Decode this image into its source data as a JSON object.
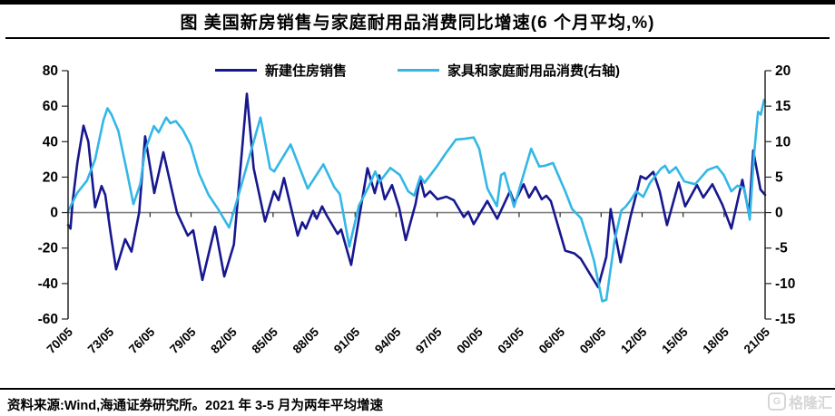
{
  "title": "图  美国新房销售与家庭耐用品消费同比增速(6 个月平均,%)",
  "legend": [
    {
      "label": "新建住房销售",
      "color": "#17178F"
    },
    {
      "label": "家具和家庭耐用品消费(右轴)",
      "color": "#33B7E6"
    }
  ],
  "footer": {
    "source_note": "资料来源:Wind,海通证券研究所。2021 年 3-5 月为两年平均增速",
    "logo_mark": "G",
    "logo_text": "格隆汇"
  },
  "chart_data": {
    "type": "line",
    "title": "美国新房销售与家庭耐用品消费同比增速(6个月平均,%)",
    "grid": false,
    "legend_position": "top",
    "x_range": [
      1970.42,
      2021.42
    ],
    "x_tick_labels": [
      "70/05",
      "73/05",
      "76/05",
      "79/05",
      "82/05",
      "85/05",
      "88/05",
      "91/05",
      "94/05",
      "97/05",
      "00/05",
      "03/05",
      "06/05",
      "09/05",
      "12/05",
      "15/05",
      "18/05",
      "21/05"
    ],
    "left_axis": {
      "min": -60,
      "max": 80,
      "ticks": [
        80,
        60,
        40,
        20,
        0,
        -20,
        -40,
        -60
      ]
    },
    "right_axis": {
      "min": -15,
      "max": 20,
      "ticks": [
        20,
        15,
        10,
        5,
        0,
        -5,
        -10,
        -15
      ],
      "note": "右轴"
    },
    "zero_line_color": "#808080",
    "axis_color": "#262626",
    "series": [
      {
        "name": "新建住房销售",
        "axis": "left",
        "color": "#17178F",
        "points": [
          [
            1970.42,
            -7
          ],
          [
            1970.6,
            -9
          ],
          [
            1970.75,
            6
          ],
          [
            1971.1,
            28
          ],
          [
            1971.55,
            49
          ],
          [
            1971.9,
            40
          ],
          [
            1972.4,
            3
          ],
          [
            1972.87,
            15
          ],
          [
            1973.14,
            10
          ],
          [
            1973.5,
            -10
          ],
          [
            1973.93,
            -32
          ],
          [
            1974.6,
            -15
          ],
          [
            1975.06,
            -22
          ],
          [
            1975.62,
            0
          ],
          [
            1976.06,
            43
          ],
          [
            1976.73,
            11
          ],
          [
            1977.39,
            34
          ],
          [
            1978.39,
            0
          ],
          [
            1979.18,
            -13
          ],
          [
            1979.58,
            -10
          ],
          [
            1980.25,
            -38
          ],
          [
            1981.18,
            -8
          ],
          [
            1981.85,
            -36
          ],
          [
            1982.55,
            -18
          ],
          [
            1983.5,
            67
          ],
          [
            1984.0,
            25
          ],
          [
            1984.83,
            -5
          ],
          [
            1985.49,
            12
          ],
          [
            1985.82,
            7
          ],
          [
            1986.22,
            19.5
          ],
          [
            1987.22,
            -13
          ],
          [
            1987.55,
            -5.5
          ],
          [
            1987.81,
            -9
          ],
          [
            1988.35,
            1
          ],
          [
            1988.61,
            -3.5
          ],
          [
            1989.01,
            3.5
          ],
          [
            1989.34,
            -1.5
          ],
          [
            1990.14,
            -12
          ],
          [
            1990.4,
            -9.5
          ],
          [
            1991.13,
            -29.5
          ],
          [
            1992.33,
            25
          ],
          [
            1992.86,
            11
          ],
          [
            1993.19,
            21
          ],
          [
            1993.59,
            7.5
          ],
          [
            1994.12,
            15.5
          ],
          [
            1994.65,
            2.5
          ],
          [
            1995.12,
            -15.5
          ],
          [
            1995.85,
            5
          ],
          [
            1996.18,
            19.5
          ],
          [
            1996.51,
            9
          ],
          [
            1996.91,
            12
          ],
          [
            1997.45,
            7.5
          ],
          [
            1998.1,
            9
          ],
          [
            1998.64,
            7
          ],
          [
            1999.37,
            -2.5
          ],
          [
            1999.7,
            0.5
          ],
          [
            2000.1,
            -6.5
          ],
          [
            2001.09,
            6.5
          ],
          [
            2001.82,
            -3.5
          ],
          [
            2002.75,
            12
          ],
          [
            2003.08,
            5.5
          ],
          [
            2003.75,
            16
          ],
          [
            2004.15,
            8.5
          ],
          [
            2004.61,
            14.5
          ],
          [
            2005.08,
            7.5
          ],
          [
            2005.41,
            9.5
          ],
          [
            2005.74,
            6.5
          ],
          [
            2006.8,
            -21.5
          ],
          [
            2007.47,
            -23
          ],
          [
            2007.93,
            -26
          ],
          [
            2008.6,
            -34.5
          ],
          [
            2009.2,
            -42
          ],
          [
            2009.8,
            -25
          ],
          [
            2010.12,
            2
          ],
          [
            2010.45,
            -12
          ],
          [
            2010.85,
            -28
          ],
          [
            2011.58,
            -2
          ],
          [
            2012.05,
            12
          ],
          [
            2012.31,
            20.5
          ],
          [
            2012.71,
            19
          ],
          [
            2013.24,
            23
          ],
          [
            2013.71,
            12
          ],
          [
            2014.24,
            -7
          ],
          [
            2015.1,
            17
          ],
          [
            2015.57,
            3.5
          ],
          [
            2016.43,
            15.5
          ],
          [
            2016.9,
            8.5
          ],
          [
            2017.56,
            16
          ],
          [
            2018.29,
            4.5
          ],
          [
            2018.95,
            -9
          ],
          [
            2019.75,
            18.5
          ],
          [
            2020.25,
            -1
          ],
          [
            2020.55,
            35
          ],
          [
            2021.08,
            13
          ],
          [
            2021.42,
            10
          ]
        ]
      },
      {
        "name": "家具和家庭耐用品消费(右轴)",
        "axis": "right",
        "color": "#33B7E6",
        "points": [
          [
            1970.42,
            0.2
          ],
          [
            1971.1,
            2.8
          ],
          [
            1971.8,
            4.5
          ],
          [
            1972.4,
            7.5
          ],
          [
            1973.0,
            13
          ],
          [
            1973.3,
            14.7
          ],
          [
            1973.6,
            13.8
          ],
          [
            1974.1,
            11.5
          ],
          [
            1974.7,
            6
          ],
          [
            1975.2,
            1.2
          ],
          [
            1975.7,
            4
          ],
          [
            1976.06,
            8.8
          ],
          [
            1976.7,
            12.2
          ],
          [
            1977.05,
            11.3
          ],
          [
            1977.6,
            13.4
          ],
          [
            1977.9,
            12.6
          ],
          [
            1978.3,
            12.9
          ],
          [
            1978.8,
            11.7
          ],
          [
            1979.4,
            9.5
          ],
          [
            1980.0,
            5.5
          ],
          [
            1980.7,
            2.5
          ],
          [
            1981.4,
            0.5
          ],
          [
            1982.2,
            -2.1
          ],
          [
            1982.9,
            2.5
          ],
          [
            1984.5,
            13.4
          ],
          [
            1985.2,
            6.2
          ],
          [
            1985.5,
            5.8
          ],
          [
            1986.7,
            9.6
          ],
          [
            1987.95,
            3.4
          ],
          [
            1989.1,
            6.8
          ],
          [
            1989.9,
            3.6
          ],
          [
            1990.3,
            2.6
          ],
          [
            1991.0,
            -4.8
          ],
          [
            1991.7,
            1
          ],
          [
            1992.4,
            3.6
          ],
          [
            1992.9,
            5.8
          ],
          [
            1993.2,
            4.3
          ],
          [
            1994.0,
            6.3
          ],
          [
            1994.7,
            5.3
          ],
          [
            1995.3,
            3
          ],
          [
            1995.75,
            2.4
          ],
          [
            1996.2,
            5.1
          ],
          [
            1996.5,
            4.2
          ],
          [
            1997.4,
            6.5
          ],
          [
            1998.0,
            8.2
          ],
          [
            1998.8,
            10.3
          ],
          [
            1999.4,
            10.4
          ],
          [
            2000.1,
            10.6
          ],
          [
            2000.5,
            9
          ],
          [
            2001.1,
            3.4
          ],
          [
            2001.8,
            0.9
          ],
          [
            2002.1,
            5.3
          ],
          [
            2002.35,
            5.6
          ],
          [
            2003.05,
            0.8
          ],
          [
            2004.3,
            9
          ],
          [
            2004.9,
            6.5
          ],
          [
            2005.3,
            6.6
          ],
          [
            2005.9,
            7
          ],
          [
            2006.8,
            3
          ],
          [
            2007.3,
            0.5
          ],
          [
            2007.95,
            -0.8
          ],
          [
            2008.6,
            -4.8
          ],
          [
            2008.9,
            -6.8
          ],
          [
            2009.5,
            -12.5
          ],
          [
            2009.8,
            -12.3
          ],
          [
            2010.4,
            -4
          ],
          [
            2010.9,
            0.3
          ],
          [
            2011.2,
            0.8
          ],
          [
            2011.6,
            1.8
          ],
          [
            2012.0,
            3
          ],
          [
            2012.5,
            2.2
          ],
          [
            2013.0,
            4.2
          ],
          [
            2013.8,
            6.2
          ],
          [
            2014.1,
            6.6
          ],
          [
            2014.4,
            5.6
          ],
          [
            2014.9,
            6.4
          ],
          [
            2015.5,
            4.4
          ],
          [
            2016.3,
            4
          ],
          [
            2017.2,
            6
          ],
          [
            2017.9,
            6.5
          ],
          [
            2018.4,
            5.3
          ],
          [
            2018.95,
            3
          ],
          [
            2019.4,
            3.8
          ],
          [
            2019.9,
            3.4
          ],
          [
            2020.3,
            -1
          ],
          [
            2020.6,
            8
          ],
          [
            2020.9,
            14.2
          ],
          [
            2021.1,
            13.8
          ],
          [
            2021.35,
            15.9
          ],
          [
            2021.42,
            15.6
          ]
        ]
      }
    ]
  }
}
